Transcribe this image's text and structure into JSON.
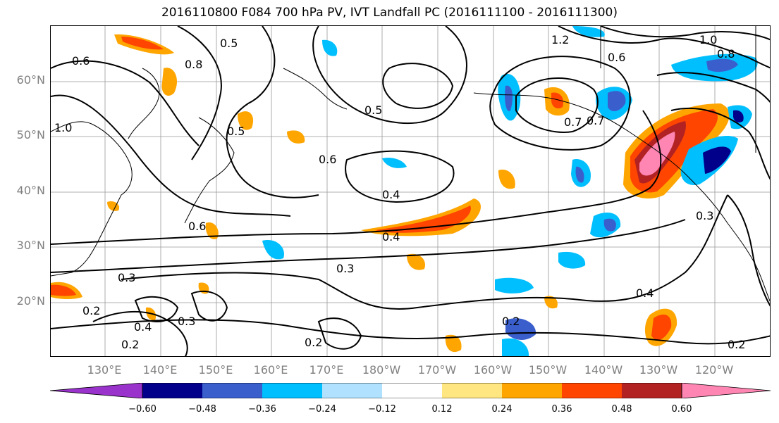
{
  "title": "2016110800 F084 700 hPa PV, IVT Landfall PC (2016111100 - 2016111300)",
  "lat_labels": [
    "60°N",
    "50°N",
    "40°N",
    "30°N",
    "20°N"
  ],
  "lon_labels": [
    "130°E",
    "140°E",
    "150°E",
    "160°E",
    "170°E",
    "180°W",
    "170°W",
    "160°W",
    "150°W",
    "140°W",
    "130°W",
    "120°W"
  ],
  "colorbar": {
    "colors": [
      "#9933cc",
      "#00008b",
      "#3a5fcd",
      "#00bfff",
      "#b0e2ff",
      "#ffffff",
      "#ffe680",
      "#ffa500",
      "#ff4500",
      "#b22222",
      "#ff85b3"
    ],
    "tick_labels": [
      "−0.60",
      "−0.48",
      "−0.36",
      "−0.24",
      "−0.12",
      "0.12",
      "0.24",
      "0.36",
      "0.48",
      "0.60"
    ]
  },
  "contour_labels": [
    "0.6",
    "0.5",
    "0.4",
    "0.7",
    "0.8",
    "1.0",
    "1.2",
    "0.3",
    "0.2",
    "0.6",
    "0.5",
    "0.4",
    "0.3",
    "0.4",
    "0.2",
    "0.3",
    "0.2",
    "0.2",
    "0.2",
    "0.4",
    "0.3",
    "0.6",
    "0.7",
    "0.6",
    "0.8",
    "1.0",
    "0.5"
  ]
}
